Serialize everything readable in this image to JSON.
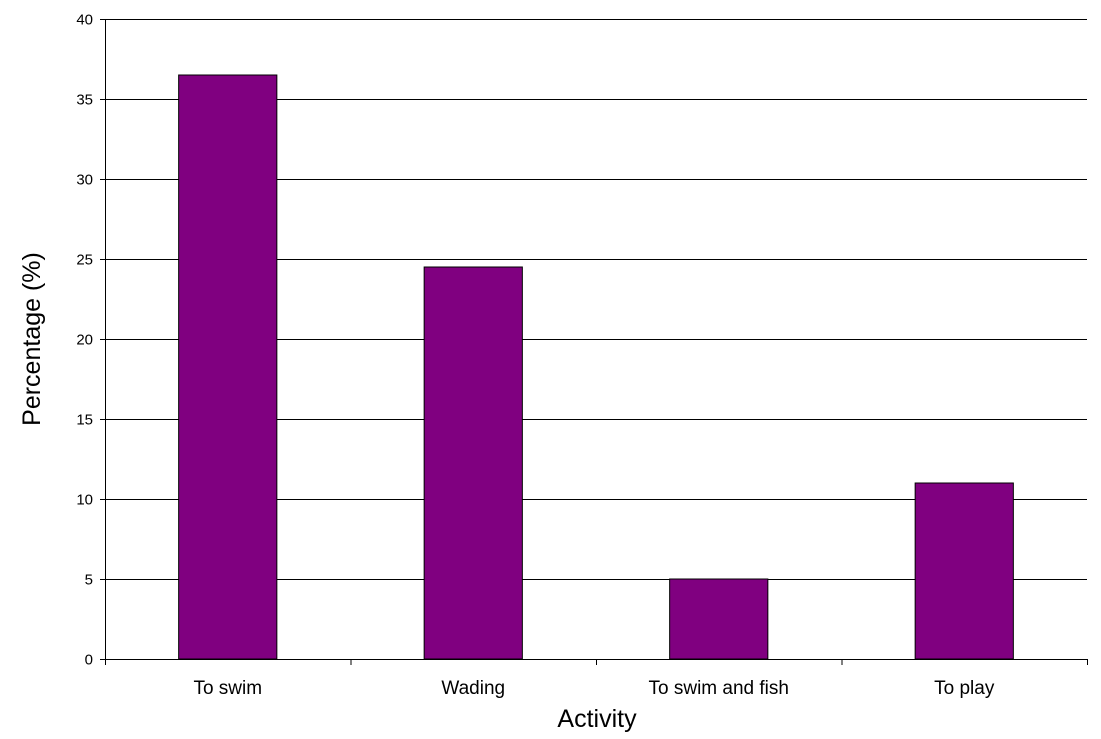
{
  "chart_data": {
    "type": "bar",
    "title": "",
    "xlabel": "Activity",
    "ylabel": "Percentage (%)",
    "categories": [
      "To swim",
      "Wading",
      "To swim and fish",
      "To play"
    ],
    "values": [
      36.5,
      24.5,
      5,
      11
    ],
    "ylim": [
      0,
      40
    ],
    "yticks": [
      0,
      5,
      10,
      15,
      20,
      25,
      30,
      35,
      40
    ],
    "grid": true,
    "legend": "none",
    "colors": {
      "bar_fill": "#800080",
      "bar_stroke": "#000000",
      "grid": "#000000",
      "axis": "#000000",
      "background": "#ffffff"
    }
  }
}
